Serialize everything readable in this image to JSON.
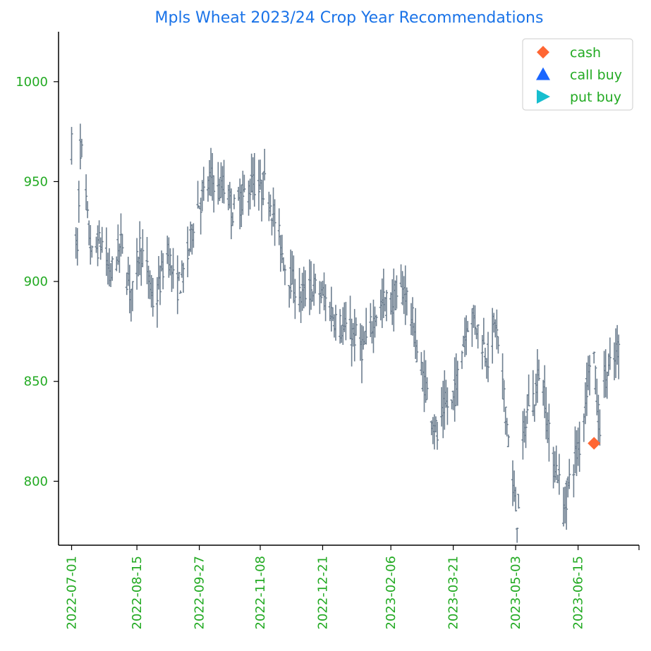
{
  "chart_data": {
    "type": "ohlc",
    "title": "Mpls Wheat 2023/24 Crop Year Recommendations",
    "xlabel": "",
    "ylabel": "",
    "y_ticks": [
      800,
      850,
      900,
      950,
      1000
    ],
    "x_ticks": [
      "2022-07-01",
      "2022-08-15",
      "2022-09-27",
      "2022-11-08",
      "2022-12-21",
      "2023-02-06",
      "2023-03-21",
      "2023-05-03",
      "2023-06-15"
    ],
    "xlim": [
      "2022-06-22",
      "2023-07-27"
    ],
    "ylim": [
      768,
      1025
    ],
    "grid": false,
    "legend_position": "top-right",
    "legend": [
      {
        "label": "cash",
        "marker": "diamond",
        "color": "#ff6633"
      },
      {
        "label": "call buy",
        "marker": "triangle-up",
        "color": "#1a66ff"
      },
      {
        "label": "put buy",
        "marker": "triangle-right",
        "color": "#17becf"
      }
    ],
    "price_anchors": [
      [
        "2022-07-01",
        968
      ],
      [
        "2022-07-03",
        925
      ],
      [
        "2022-07-05",
        915
      ],
      [
        "2022-07-07",
        968
      ],
      [
        "2022-07-09",
        960
      ],
      [
        "2022-07-12",
        930
      ],
      [
        "2022-07-15",
        912
      ],
      [
        "2022-07-19",
        918
      ],
      [
        "2022-07-23",
        920
      ],
      [
        "2022-07-27",
        902
      ],
      [
        "2022-08-01",
        912
      ],
      [
        "2022-08-05",
        920
      ],
      [
        "2022-08-08",
        903
      ],
      [
        "2022-08-12",
        894
      ],
      [
        "2022-08-17",
        918
      ],
      [
        "2022-08-22",
        905
      ],
      [
        "2022-08-27",
        886
      ],
      [
        "2022-09-02",
        907
      ],
      [
        "2022-09-06",
        915
      ],
      [
        "2022-09-10",
        895
      ],
      [
        "2022-09-14",
        900
      ],
      [
        "2022-09-18",
        908
      ],
      [
        "2022-09-24",
        935
      ],
      [
        "2022-09-30",
        943
      ],
      [
        "2022-10-06",
        953
      ],
      [
        "2022-10-10",
        945
      ],
      [
        "2022-10-15",
        948
      ],
      [
        "2022-10-20",
        935
      ],
      [
        "2022-10-25",
        940
      ],
      [
        "2022-10-30",
        945
      ],
      [
        "2022-11-03",
        950
      ],
      [
        "2022-11-08",
        945
      ],
      [
        "2022-11-12",
        950
      ],
      [
        "2022-11-16",
        937
      ],
      [
        "2022-11-20",
        925
      ],
      [
        "2022-11-25",
        908
      ],
      [
        "2022-11-30",
        900
      ],
      [
        "2022-12-05",
        892
      ],
      [
        "2022-12-10",
        895
      ],
      [
        "2022-12-15",
        897
      ],
      [
        "2022-12-21",
        893
      ],
      [
        "2022-12-27",
        885
      ],
      [
        "2023-01-03",
        877
      ],
      [
        "2023-01-08",
        875
      ],
      [
        "2023-01-13",
        872
      ],
      [
        "2023-01-18",
        866
      ],
      [
        "2023-01-22",
        874
      ],
      [
        "2023-01-27",
        885
      ],
      [
        "2023-02-01",
        890
      ],
      [
        "2023-02-06",
        889
      ],
      [
        "2023-02-11",
        894
      ],
      [
        "2023-02-16",
        895
      ],
      [
        "2023-02-21",
        880
      ],
      [
        "2023-02-25",
        860
      ],
      [
        "2023-03-01",
        850
      ],
      [
        "2023-03-06",
        835
      ],
      [
        "2023-03-10",
        822
      ],
      [
        "2023-03-15",
        838
      ],
      [
        "2023-03-20",
        838
      ],
      [
        "2023-03-23",
        848
      ],
      [
        "2023-03-28",
        870
      ],
      [
        "2023-04-01",
        884
      ],
      [
        "2023-04-05",
        880
      ],
      [
        "2023-04-10",
        870
      ],
      [
        "2023-04-14",
        862
      ],
      [
        "2023-04-19",
        880
      ],
      [
        "2023-04-23",
        855
      ],
      [
        "2023-04-27",
        830
      ],
      [
        "2023-05-01",
        797
      ],
      [
        "2023-05-04",
        782
      ],
      [
        "2023-05-08",
        818
      ],
      [
        "2023-05-12",
        840
      ],
      [
        "2023-05-16",
        842
      ],
      [
        "2023-05-20",
        860
      ],
      [
        "2023-05-24",
        835
      ],
      [
        "2023-05-28",
        810
      ],
      [
        "2023-06-01",
        805
      ],
      [
        "2023-06-05",
        785
      ],
      [
        "2023-06-09",
        800
      ],
      [
        "2023-06-13",
        812
      ],
      [
        "2023-06-17",
        820
      ],
      [
        "2023-06-21",
        848
      ],
      [
        "2023-06-25",
        875
      ],
      [
        "2023-06-28",
        838
      ],
      [
        "2023-07-01",
        825
      ],
      [
        "2023-07-03",
        852
      ],
      [
        "2023-07-06",
        855
      ],
      [
        "2023-07-10",
        860
      ],
      [
        "2023-07-13",
        868
      ]
    ],
    "cash_points": [
      {
        "date": "2023-06-26",
        "value": 819
      }
    ]
  }
}
